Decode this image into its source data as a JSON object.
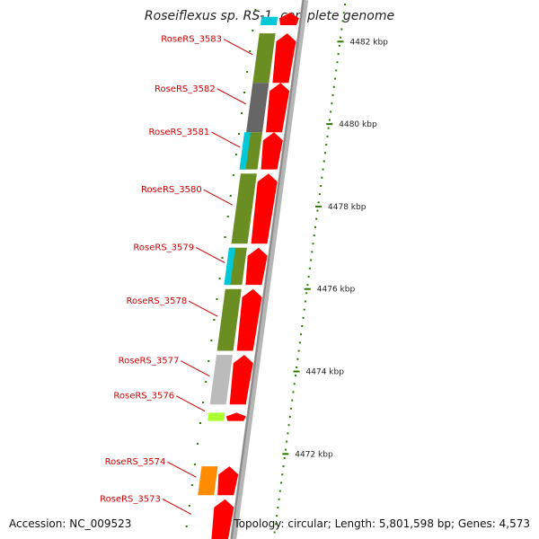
{
  "title": "Roseiflexus sp. RS-1, complete genome",
  "accession": "Accession: NC_009523",
  "topology": "Topology: circular; Length: 5,801,598 bp; Genes: 4,573",
  "colors": {
    "label": "#cc0000",
    "forward_cds": "#ff0000",
    "backbone": "#8a8a8a",
    "tick": "#2a7a00"
  },
  "ticks": [
    {
      "kbp": 4482,
      "label": "4482 kbp"
    },
    {
      "kbp": 4480,
      "label": "4480 kbp"
    },
    {
      "kbp": 4478,
      "label": "4478 kbp"
    },
    {
      "kbp": 4476,
      "label": "4476 kbp"
    },
    {
      "kbp": 4474,
      "label": "4474 kbp"
    },
    {
      "kbp": 4472,
      "label": "4472 kbp"
    }
  ],
  "genes": [
    {
      "name": "RoseRS_3583",
      "start": 4481.0,
      "end": 4482.2
    },
    {
      "name": "RoseRS_3582",
      "start": 4479.8,
      "end": 4481.0
    },
    {
      "name": "RoseRS_3581",
      "start": 4478.9,
      "end": 4479.8
    },
    {
      "name": "RoseRS_3580",
      "start": 4477.1,
      "end": 4478.8
    },
    {
      "name": "RoseRS_3579",
      "start": 4476.1,
      "end": 4477.0
    },
    {
      "name": "RoseRS_3578",
      "start": 4474.5,
      "end": 4476.0
    },
    {
      "name": "RoseRS_3577",
      "start": 4473.2,
      "end": 4474.4
    },
    {
      "name": "RoseRS_3576",
      "start": 4472.8,
      "end": 4473.1
    },
    {
      "name": "RoseRS_3574",
      "start": 4471.0,
      "end": 4471.7
    },
    {
      "name": "RoseRS_3573",
      "start": 4470.0,
      "end": 4470.9
    }
  ],
  "cog_blocks": [
    {
      "start": 4482.4,
      "end": 4482.6,
      "color": "#00c8d6"
    },
    {
      "start": 4481.0,
      "end": 4482.2,
      "color": "#6b8e23"
    },
    {
      "start": 4479.8,
      "end": 4481.0,
      "color": "#666666"
    },
    {
      "start": 4478.9,
      "end": 4479.8,
      "color": "#6b8e23"
    },
    {
      "start": 4478.9,
      "end": 4479.8,
      "color": "#00c8d6",
      "narrow": true
    },
    {
      "start": 4477.1,
      "end": 4478.8,
      "color": "#6b8e23"
    },
    {
      "start": 4476.1,
      "end": 4477.0,
      "color": "#6b8e23"
    },
    {
      "start": 4476.1,
      "end": 4477.0,
      "color": "#00c8d6",
      "narrow": true
    },
    {
      "start": 4474.5,
      "end": 4476.0,
      "color": "#6b8e23"
    },
    {
      "start": 4473.2,
      "end": 4474.4,
      "color": "#bbbbbb"
    },
    {
      "start": 4472.8,
      "end": 4473.0,
      "color": "#adff2f"
    },
    {
      "start": 4471.0,
      "end": 4471.7,
      "color": "#ff8c00"
    }
  ],
  "cds": [
    {
      "start": 4482.4,
      "end": 4482.7
    },
    {
      "start": 4481.0,
      "end": 4482.2
    },
    {
      "start": 4479.8,
      "end": 4481.0
    },
    {
      "start": 4478.9,
      "end": 4479.8
    },
    {
      "start": 4477.1,
      "end": 4478.8
    },
    {
      "start": 4476.1,
      "end": 4477.0
    },
    {
      "start": 4474.5,
      "end": 4476.0
    },
    {
      "start": 4473.2,
      "end": 4474.4
    },
    {
      "start": 4472.8,
      "end": 4473.0
    },
    {
      "start": 4471.0,
      "end": 4471.7
    },
    {
      "start": 4469.8,
      "end": 4470.9
    }
  ]
}
